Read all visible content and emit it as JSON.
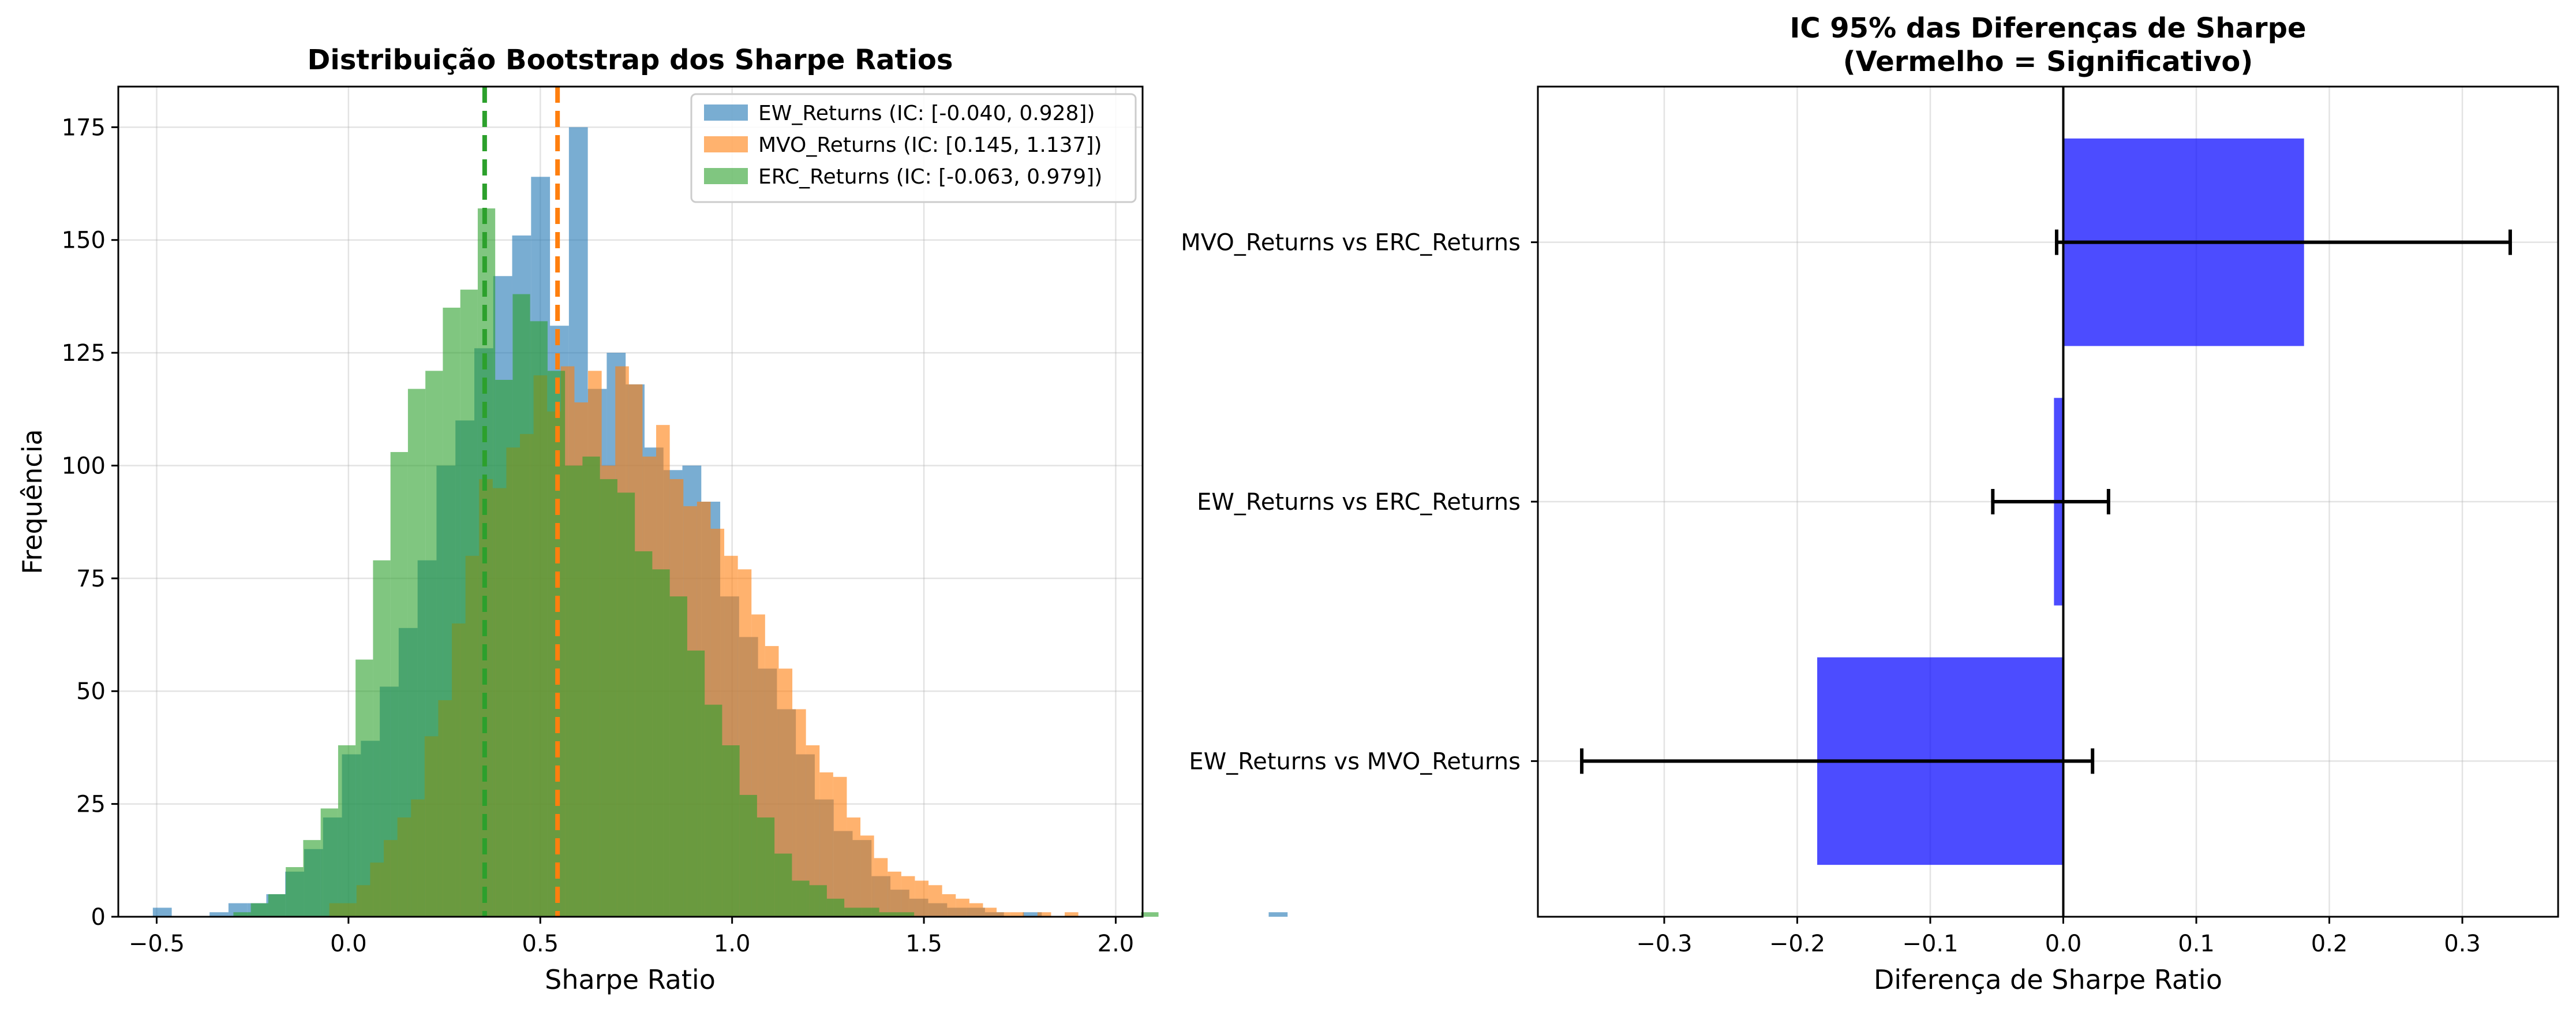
{
  "chart_data": [
    {
      "type": "histogram",
      "title": "Distribuição Bootstrap dos Sharpe Ratios",
      "xlabel": "Sharpe Ratio",
      "ylabel": "Frequência",
      "xlim": [
        -0.6,
        2.07
      ],
      "ylim": [
        0,
        184
      ],
      "xticks": [
        -0.5,
        0.0,
        0.5,
        1.0,
        1.5,
        2.0
      ],
      "xtick_labels": [
        "−0.5",
        "0.0",
        "0.5",
        "1.0",
        "1.5",
        "2.0"
      ],
      "yticks": [
        0,
        25,
        50,
        75,
        100,
        125,
        150,
        175
      ],
      "ytick_labels": [
        "0",
        "25",
        "50",
        "75",
        "100",
        "125",
        "150",
        "175"
      ],
      "grid": true,
      "legend_position": "top-right",
      "series": [
        {
          "name": "EW_Returns (IC: [-0.040, 0.928])",
          "color": "#1f77b4",
          "alpha": 0.6,
          "bin_start": -0.51,
          "bin_width": 0.0493,
          "counts": [
            2,
            0,
            0,
            1,
            3,
            3,
            5,
            10,
            15,
            22,
            36,
            39,
            51,
            64,
            79,
            100,
            110,
            126,
            142,
            151,
            164,
            131,
            175,
            117,
            125,
            118,
            104,
            99,
            100,
            92,
            71,
            62,
            55,
            46,
            36,
            26,
            19,
            17,
            9,
            6,
            4,
            3,
            2,
            2,
            1,
            0,
            1,
            0,
            0,
            0,
            0,
            0,
            0,
            0,
            0,
            0,
            0,
            0,
            0,
            1
          ]
        },
        {
          "name": "MVO_Returns (IC: [0.145, 1.137])",
          "color": "#ff7f0e",
          "alpha": 0.6,
          "bin_start": -0.05,
          "bin_width": 0.0355,
          "counts": [
            3,
            3,
            7,
            12,
            17,
            22,
            26,
            40,
            48,
            65,
            80,
            97,
            95,
            104,
            107,
            120,
            112,
            122,
            114,
            121,
            100,
            122,
            118,
            102,
            109,
            97,
            91,
            92,
            86,
            80,
            77,
            67,
            60,
            55,
            46,
            38,
            32,
            31,
            22,
            18,
            13,
            10,
            9,
            8,
            7,
            5,
            4,
            3,
            2,
            1,
            1,
            0,
            1,
            0,
            1,
            0,
            0,
            0
          ]
        },
        {
          "name": "ERC_Returns (IC: [-0.063, 0.979])",
          "color": "#2ca02c",
          "alpha": 0.6,
          "bin_start": -0.3,
          "bin_width": 0.0455,
          "counts": [
            1,
            3,
            5,
            11,
            17,
            24,
            38,
            57,
            79,
            103,
            117,
            121,
            135,
            139,
            157,
            119,
            138,
            132,
            121,
            100,
            102,
            97,
            94,
            81,
            77,
            71,
            59,
            47,
            38,
            27,
            22,
            14,
            8,
            7,
            4,
            2,
            2,
            1,
            1,
            0,
            0,
            0,
            0,
            0,
            0,
            0,
            0,
            0,
            0,
            0,
            0,
            0,
            1
          ]
        }
      ],
      "vlines": [
        {
          "x": 0.355,
          "color": "#2ca02c",
          "style": "dashed"
        },
        {
          "x": 0.545,
          "color": "#ff7f0e",
          "style": "dashed"
        }
      ]
    },
    {
      "type": "bar",
      "orientation": "horizontal",
      "title": "IC 95% das Diferenças de Sharpe",
      "subtitle": "(Vermelho = Significativo)",
      "xlabel": "Diferença de Sharpe Ratio",
      "ylabel": "",
      "xlim": [
        -0.395,
        0.372
      ],
      "xticks": [
        -0.3,
        -0.2,
        -0.1,
        0.0,
        0.1,
        0.2,
        0.3
      ],
      "xtick_labels": [
        "−0.3",
        "−0.2",
        "−0.1",
        "0.0",
        "0.1",
        "0.2",
        "0.3"
      ],
      "grid": true,
      "bar_color": "#0000ff",
      "categories": [
        "EW_Returns vs MVO_Returns",
        "EW_Returns vs ERC_Returns",
        "MVO_Returns vs ERC_Returns"
      ],
      "values": [
        -0.185,
        -0.007,
        0.181
      ],
      "ci_low": [
        -0.362,
        -0.053,
        -0.005
      ],
      "ci_high": [
        0.022,
        0.034,
        0.336
      ]
    }
  ]
}
